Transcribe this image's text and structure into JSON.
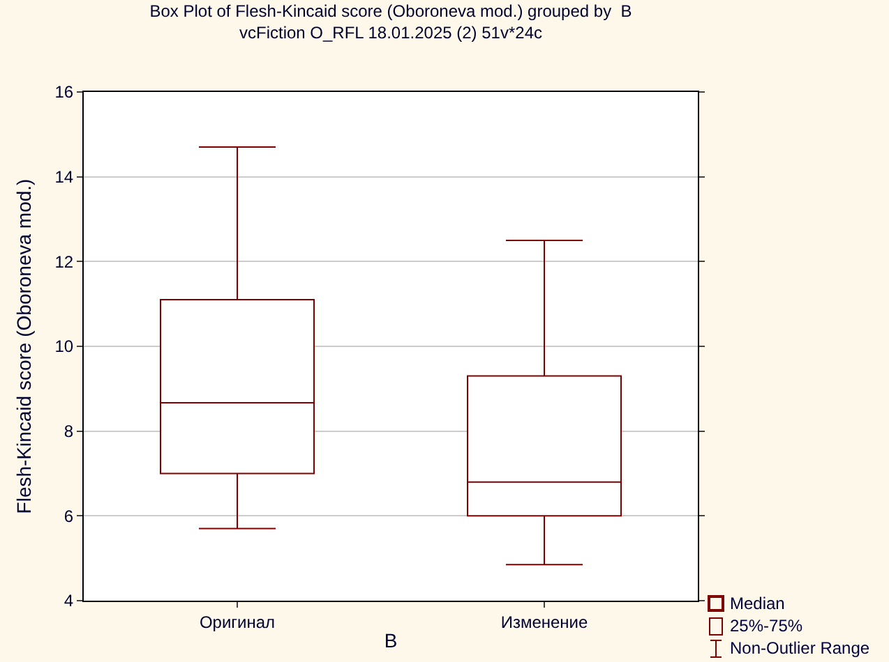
{
  "chart_data": {
    "type": "box",
    "title": "Box Plot of Flesh-Kincaid score (Oboroneva mod.) grouped by  B",
    "subtitle": "vcFiction O_RFL 18.01.2025 (2) 51v*24c",
    "xlabel": "B",
    "ylabel": "Flesh-Kincaid score (Oboroneva mod.)",
    "categories": [
      "Оригинал",
      "Изменение"
    ],
    "color": "#800000",
    "boxes": [
      {
        "low": 5.7,
        "q1": 7.0,
        "median": 8.67,
        "q3": 11.1,
        "high": 14.7
      },
      {
        "low": 4.85,
        "q1": 6.0,
        "median": 6.8,
        "q3": 9.3,
        "high": 12.5
      }
    ],
    "ylim": [
      4,
      16
    ],
    "yticks": [
      4,
      6,
      8,
      10,
      12,
      14,
      16
    ],
    "grid": "y",
    "annotations": [
      "Median",
      "25%-75%",
      "Non-Outlier Range"
    ]
  }
}
